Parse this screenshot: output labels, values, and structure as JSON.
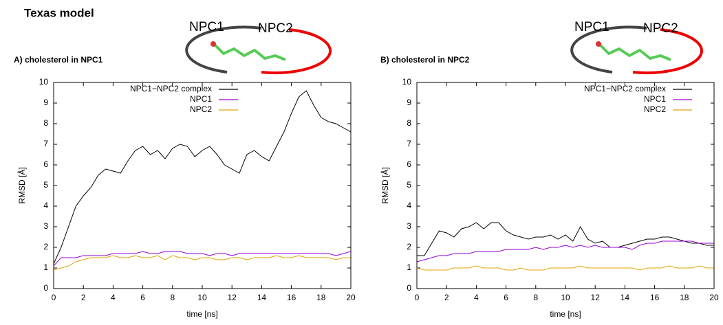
{
  "title": "Texas model",
  "chart_data": [
    {
      "type": "line",
      "title": "A) cholesterol in NPC1",
      "annotations": [
        "NPC1",
        "NPC2"
      ],
      "xlabel": "time [ns]",
      "ylabel": "RMSD [Å]",
      "xlim": [
        0,
        20
      ],
      "ylim": [
        0,
        10
      ],
      "xticks": [
        0,
        2,
        4,
        6,
        8,
        10,
        12,
        14,
        16,
        18,
        20
      ],
      "yticks": [
        0,
        1,
        2,
        3,
        4,
        5,
        6,
        7,
        8,
        9,
        10
      ],
      "legend": "upper left",
      "x": [
        0,
        0.5,
        1,
        1.5,
        2,
        2.5,
        3,
        3.5,
        4,
        4.5,
        5,
        5.5,
        6,
        6.5,
        7,
        7.5,
        8,
        8.5,
        9,
        9.5,
        10,
        10.5,
        11,
        11.5,
        12,
        12.5,
        13,
        13.5,
        14,
        14.5,
        15,
        15.5,
        16,
        16.5,
        17,
        17.5,
        18,
        18.5,
        19,
        19.5,
        20
      ],
      "series": [
        {
          "name": "NPC1−NPC2 complex",
          "color": "#000000",
          "values": [
            1.2,
            2.0,
            3.0,
            4.0,
            4.5,
            4.9,
            5.5,
            5.8,
            5.7,
            5.6,
            6.2,
            6.7,
            6.9,
            6.5,
            6.7,
            6.3,
            6.8,
            7.0,
            6.9,
            6.4,
            6.7,
            6.9,
            6.5,
            6.0,
            5.8,
            5.6,
            6.5,
            6.7,
            6.4,
            6.2,
            6.9,
            7.6,
            8.5,
            9.3,
            9.6,
            8.9,
            8.3,
            8.1,
            8.0,
            7.8,
            7.6
          ]
        },
        {
          "name": "NPC1",
          "color": "#9400d3",
          "values": [
            1.1,
            1.5,
            1.5,
            1.5,
            1.6,
            1.6,
            1.6,
            1.6,
            1.7,
            1.7,
            1.7,
            1.7,
            1.8,
            1.7,
            1.7,
            1.8,
            1.8,
            1.8,
            1.7,
            1.7,
            1.7,
            1.6,
            1.7,
            1.7,
            1.6,
            1.7,
            1.7,
            1.7,
            1.7,
            1.7,
            1.7,
            1.7,
            1.7,
            1.7,
            1.7,
            1.7,
            1.7,
            1.7,
            1.6,
            1.7,
            1.8
          ]
        },
        {
          "name": "NPC2",
          "color": "#e69f00",
          "values": [
            0.9,
            1.0,
            1.1,
            1.3,
            1.4,
            1.5,
            1.5,
            1.5,
            1.6,
            1.5,
            1.5,
            1.6,
            1.5,
            1.5,
            1.6,
            1.4,
            1.6,
            1.5,
            1.5,
            1.4,
            1.5,
            1.5,
            1.4,
            1.4,
            1.5,
            1.5,
            1.4,
            1.5,
            1.5,
            1.5,
            1.6,
            1.5,
            1.5,
            1.6,
            1.5,
            1.5,
            1.5,
            1.5,
            1.4,
            1.5,
            1.5
          ]
        }
      ]
    },
    {
      "type": "line",
      "title": "B) cholesterol in NPC2",
      "annotations": [
        "NPC1",
        "NPC2"
      ],
      "xlabel": "time [ns]",
      "ylabel": "RMSD [Å]",
      "xlim": [
        0,
        20
      ],
      "ylim": [
        0,
        10
      ],
      "xticks": [
        0,
        2,
        4,
        6,
        8,
        10,
        12,
        14,
        16,
        18,
        20
      ],
      "yticks": [
        0,
        1,
        2,
        3,
        4,
        5,
        6,
        7,
        8,
        9,
        10
      ],
      "legend": "upper right",
      "x": [
        0,
        0.5,
        1,
        1.5,
        2,
        2.5,
        3,
        3.5,
        4,
        4.5,
        5,
        5.5,
        6,
        6.5,
        7,
        7.5,
        8,
        8.5,
        9,
        9.5,
        10,
        10.5,
        11,
        11.5,
        12,
        12.5,
        13,
        13.5,
        14,
        14.5,
        15,
        15.5,
        16,
        16.5,
        17,
        17.5,
        18,
        18.5,
        19,
        19.5,
        20
      ],
      "series": [
        {
          "name": "NPC1−NPC2 complex",
          "color": "#000000",
          "values": [
            1.6,
            1.6,
            2.2,
            2.8,
            2.7,
            2.5,
            2.9,
            3.0,
            3.2,
            2.9,
            3.2,
            3.2,
            2.8,
            2.6,
            2.5,
            2.4,
            2.5,
            2.5,
            2.6,
            2.4,
            2.6,
            2.3,
            3.0,
            2.4,
            2.2,
            2.3,
            2.0,
            2.0,
            2.1,
            2.2,
            2.3,
            2.4,
            2.4,
            2.5,
            2.5,
            2.4,
            2.3,
            2.2,
            2.2,
            2.1,
            2.1
          ]
        },
        {
          "name": "NPC1",
          "color": "#9400d3",
          "values": [
            1.3,
            1.4,
            1.5,
            1.6,
            1.6,
            1.7,
            1.7,
            1.7,
            1.8,
            1.8,
            1.8,
            1.8,
            1.9,
            1.9,
            1.9,
            1.9,
            2.0,
            1.9,
            2.0,
            2.0,
            2.1,
            2.0,
            2.1,
            2.0,
            2.1,
            2.0,
            2.0,
            2.0,
            2.0,
            1.9,
            2.1,
            2.2,
            2.2,
            2.3,
            2.3,
            2.3,
            2.3,
            2.3,
            2.2,
            2.2,
            2.2
          ]
        },
        {
          "name": "NPC2",
          "color": "#e69f00",
          "values": [
            1.0,
            0.9,
            0.9,
            0.9,
            0.9,
            1.0,
            1.0,
            1.0,
            1.1,
            1.0,
            1.0,
            1.0,
            0.9,
            0.9,
            1.0,
            0.9,
            0.9,
            0.9,
            1.0,
            1.0,
            1.0,
            1.0,
            1.1,
            1.0,
            1.0,
            1.0,
            1.0,
            1.0,
            1.0,
            1.0,
            0.9,
            1.0,
            1.0,
            1.0,
            1.1,
            1.0,
            1.0,
            1.0,
            1.1,
            1.0,
            1.0
          ]
        }
      ]
    }
  ]
}
